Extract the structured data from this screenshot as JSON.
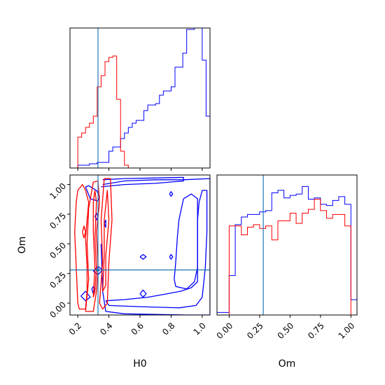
{
  "chart_data": {
    "type": "corner",
    "colors": {
      "series_a": "#0000ff",
      "series_b": "#ff0000",
      "truth": "#1f77b4"
    },
    "truth": {
      "H0": 0.33,
      "Om": 0.28
    },
    "panels": [
      {
        "id": "h0-hist",
        "type": "histogram",
        "xlim": [
          0.15,
          1.05
        ],
        "xticks": [
          0.2,
          0.4,
          0.6,
          0.8,
          1.0
        ],
        "bin_width": 0.025,
        "bin_start": 0.15,
        "ylim": [
          0,
          1
        ],
        "series": [
          {
            "color": "blue",
            "values": [
              0,
              0,
              0.02,
              0.02,
              0.02,
              0.03,
              0.03,
              0.04,
              0.04,
              0.04,
              0.12,
              0.15,
              0.15,
              0.21,
              0.25,
              0.29,
              0.32,
              0.34,
              0.34,
              0.41,
              0.45,
              0.45,
              0.46,
              0.52,
              0.55,
              0.55,
              0.58,
              0.72,
              0.72,
              0.82,
              0.99,
              0.99,
              1.0,
              1.0,
              0.77,
              0.37,
              0.02
            ]
          },
          {
            "color": "red",
            "values": [
              0,
              0,
              0.22,
              0.25,
              0.29,
              0.32,
              0.37,
              0.58,
              0.66,
              0.76,
              0.79,
              0.8,
              0.49,
              0.12,
              0.02,
              0,
              0,
              0,
              0,
              0,
              0,
              0,
              0,
              0,
              0,
              0,
              0,
              0,
              0,
              0,
              0,
              0,
              0,
              0,
              0,
              0,
              0
            ]
          }
        ]
      },
      {
        "id": "h0-om-contour",
        "type": "contour",
        "xlabel": "H0",
        "ylabel": "Om",
        "xlim": [
          0.15,
          1.05
        ],
        "ylim": [
          -0.1,
          1.08
        ],
        "xticks": [
          0.2,
          0.4,
          0.6,
          0.8,
          1.0
        ],
        "yticks": [
          0.0,
          0.25,
          0.5,
          0.75,
          1.0
        ],
        "series": [
          {
            "color": "blue",
            "contours": [
              [
                [
                  0.35,
                  0.98
                ],
                [
                  0.5,
                  1.0
                ],
                [
                  0.7,
                  1.01
                ],
                [
                  0.88,
                  1.03
                ],
                [
                  0.88,
                  1.06
                ],
                [
                  0.5,
                  1.05
                ],
                [
                  0.36,
                  1.04
                ]
              ],
              [
                [
                  0.36,
                  1.0
                ],
                [
                  0.5,
                  1.03
                ],
                [
                  0.7,
                  1.04
                ],
                [
                  0.88,
                  1.04
                ],
                [
                  1.05,
                  1.05
                ],
                [
                  1.05,
                  -0.1
                ],
                [
                  0.9,
                  -0.1
                ],
                [
                  0.5,
                  -0.09
                ],
                [
                  0.38,
                  -0.07
                ],
                [
                  0.36,
                  0.1
                ],
                [
                  0.35,
                  0.5
                ]
              ],
              [
                [
                  0.38,
                  0.02
                ],
                [
                  0.5,
                  0.03
                ],
                [
                  0.65,
                  0.05
                ],
                [
                  0.78,
                  0.08
                ],
                [
                  0.86,
                  0.1
                ],
                [
                  0.93,
                  0.13
                ],
                [
                  0.97,
                  0.18
                ],
                [
                  0.97,
                  0.5
                ],
                [
                  0.97,
                  0.7
                ],
                [
                  0.98,
                  0.85
                ],
                [
                  1.0,
                  0.95
                ],
                [
                  1.03,
                  0.95
                ],
                [
                  1.03,
                  0.6
                ],
                [
                  1.02,
                  0.3
                ],
                [
                  1.0,
                  0.05
                ],
                [
                  0.96,
                  -0.02
                ],
                [
                  0.85,
                  -0.04
                ],
                [
                  0.6,
                  -0.03
                ],
                [
                  0.4,
                  -0.02
                ],
                [
                  0.38,
                  0.02
                ]
              ],
              [
                [
                  0.82,
                  0.2
                ],
                [
                  0.83,
                  0.35
                ],
                [
                  0.84,
                  0.55
                ],
                [
                  0.85,
                  0.7
                ],
                [
                  0.88,
                  0.88
                ],
                [
                  0.93,
                  0.92
                ],
                [
                  0.97,
                  0.88
                ],
                [
                  0.97,
                  0.6
                ],
                [
                  0.97,
                  0.3
                ],
                [
                  0.95,
                  0.18
                ],
                [
                  0.9,
                  0.12
                ],
                [
                  0.83,
                  0.14
                ],
                [
                  0.82,
                  0.2
                ]
              ],
              [
                [
                  0.25,
                  0.98
                ],
                [
                  0.28,
                  0.88
                ],
                [
                  0.33,
                  0.86
                ],
                [
                  0.34,
                  0.9
                ],
                [
                  0.32,
                  0.95
                ],
                [
                  0.27,
                  0.99
                ],
                [
                  0.25,
                  0.98
                ]
              ],
              [
                [
                  0.22,
                  0.06
                ],
                [
                  0.25,
                  0.02
                ],
                [
                  0.28,
                  0.05
                ],
                [
                  0.25,
                  0.1
                ],
                [
                  0.22,
                  0.06
                ]
              ],
              [
                [
                  0.3,
                  0.27
                ],
                [
                  0.33,
                  0.24
                ],
                [
                  0.36,
                  0.28
                ],
                [
                  0.33,
                  0.31
                ],
                [
                  0.3,
                  0.27
                ]
              ],
              [
                [
                  0.29,
                  0.12
                ],
                [
                  0.3,
                  0.08
                ],
                [
                  0.31,
                  0.12
                ],
                [
                  0.3,
                  0.14
                ],
                [
                  0.29,
                  0.12
                ]
              ],
              [
                [
                  0.31,
                  0.73
                ],
                [
                  0.32,
                  0.7
                ],
                [
                  0.33,
                  0.73
                ],
                [
                  0.32,
                  0.76
                ],
                [
                  0.31,
                  0.73
                ]
              ],
              [
                [
                  0.6,
                  0.08
                ],
                [
                  0.62,
                  0.05
                ],
                [
                  0.64,
                  0.08
                ],
                [
                  0.62,
                  0.11
                ],
                [
                  0.6,
                  0.08
                ]
              ],
              [
                [
                  0.6,
                  0.39
                ],
                [
                  0.62,
                  0.37
                ],
                [
                  0.64,
                  0.39
                ],
                [
                  0.62,
                  0.41
                ],
                [
                  0.6,
                  0.39
                ]
              ],
              [
                [
                  0.79,
                  0.39
                ],
                [
                  0.8,
                  0.37
                ],
                [
                  0.81,
                  0.39
                ],
                [
                  0.8,
                  0.41
                ],
                [
                  0.79,
                  0.39
                ]
              ],
              [
                [
                  0.79,
                  0.92
                ],
                [
                  0.8,
                  0.9
                ],
                [
                  0.81,
                  0.92
                ],
                [
                  0.8,
                  0.94
                ],
                [
                  0.79,
                  0.92
                ]
              ],
              [
                [
                  0.37,
                  0.67
                ],
                [
                  0.38,
                  0.64
                ],
                [
                  0.38,
                  0.7
                ],
                [
                  0.37,
                  0.67
                ]
              ]
            ]
          },
          {
            "color": "red",
            "contours": [
              [
                [
                  0.2,
                  0.0
                ],
                [
                  0.19,
                  0.3
                ],
                [
                  0.18,
                  0.6
                ],
                [
                  0.19,
                  0.85
                ],
                [
                  0.2,
                  0.95
                ],
                [
                  0.23,
                  1.0
                ],
                [
                  0.25,
                  0.95
                ],
                [
                  0.27,
                  0.85
                ],
                [
                  0.26,
                  0.7
                ],
                [
                  0.25,
                  0.55
                ],
                [
                  0.26,
                  0.3
                ],
                [
                  0.26,
                  0.1
                ],
                [
                  0.25,
                  -0.05
                ],
                [
                  0.21,
                  -0.05
                ],
                [
                  0.2,
                  0.0
                ]
              ],
              [
                [
                  0.25,
                  -0.07
                ],
                [
                  0.27,
                  0.2
                ],
                [
                  0.26,
                  0.5
                ],
                [
                  0.27,
                  0.8
                ],
                [
                  0.3,
                  1.02
                ],
                [
                  0.33,
                  1.03
                ],
                [
                  0.34,
                  0.85
                ],
                [
                  0.32,
                  0.6
                ],
                [
                  0.33,
                  0.3
                ],
                [
                  0.32,
                  0.1
                ],
                [
                  0.3,
                  -0.07
                ],
                [
                  0.25,
                  -0.07
                ]
              ],
              [
                [
                  0.3,
                  0.05
                ],
                [
                  0.31,
                  0.3
                ],
                [
                  0.3,
                  0.6
                ],
                [
                  0.3,
                  0.85
                ],
                [
                  0.31,
                  0.95
                ],
                [
                  0.32,
                  0.85
                ],
                [
                  0.31,
                  0.55
                ],
                [
                  0.32,
                  0.3
                ],
                [
                  0.31,
                  0.1
                ],
                [
                  0.3,
                  0.05
                ]
              ],
              [
                [
                  0.34,
                  0.0
                ],
                [
                  0.36,
                  0.35
                ],
                [
                  0.35,
                  0.7
                ],
                [
                  0.37,
                  1.05
                ],
                [
                  0.41,
                  1.05
                ],
                [
                  0.42,
                  0.7
                ],
                [
                  0.4,
                  0.35
                ],
                [
                  0.39,
                  0.0
                ],
                [
                  0.36,
                  -0.05
                ],
                [
                  0.34,
                  0.0
                ]
              ],
              [
                [
                  0.36,
                  0.1
                ],
                [
                  0.37,
                  0.4
                ],
                [
                  0.37,
                  0.7
                ],
                [
                  0.39,
                  0.95
                ],
                [
                  0.4,
                  0.7
                ],
                [
                  0.38,
                  0.4
                ],
                [
                  0.38,
                  0.15
                ],
                [
                  0.36,
                  0.1
                ]
              ],
              [
                [
                  0.23,
                  0.6
                ],
                [
                  0.24,
                  0.55
                ],
                [
                  0.25,
                  0.6
                ],
                [
                  0.24,
                  0.65
                ],
                [
                  0.23,
                  0.6
                ]
              ]
            ]
          }
        ]
      },
      {
        "id": "om-hist",
        "type": "histogram",
        "xlabel": "Om",
        "xlim": [
          -0.1,
          1.05
        ],
        "xticks": [
          0.0,
          0.25,
          0.5,
          0.75,
          1.0
        ],
        "bin_width": 0.05,
        "bin_start": -0.1,
        "ylim": [
          0,
          1.1
        ],
        "series": [
          {
            "color": "blue",
            "values": [
              0.02,
              0.02,
              0.31,
              0.71,
              0.77,
              0.79,
              0.79,
              0.81,
              0.82,
              0.96,
              0.98,
              0.92,
              0.94,
              0.95,
              1.01,
              0.91,
              0.92,
              0.87,
              0.86,
              0.9,
              0.93,
              0.87,
              0.12
            ]
          },
          {
            "color": "red",
            "values": [
              0,
              0,
              0.7,
              0.7,
              0.63,
              0.69,
              0.71,
              0.68,
              0.7,
              0.59,
              0.74,
              0.74,
              0.8,
              0.72,
              0.8,
              0.83,
              0.91,
              0.82,
              0.76,
              0.79,
              0.79,
              0.7,
              0
            ]
          }
        ]
      }
    ]
  }
}
